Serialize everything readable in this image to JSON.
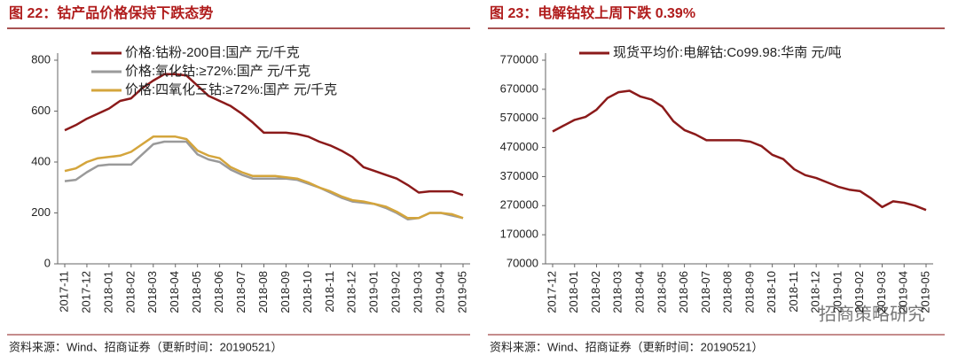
{
  "chart_data": [
    {
      "type": "line",
      "title": "图 22：钴产品价格保持下跌态势",
      "source": "资料来源：Wind、招商证券（更新时间：20190521）",
      "categories": [
        "2017-11",
        null,
        "2017-12",
        null,
        "2018-01",
        null,
        "2018-02",
        null,
        "2018-03",
        null,
        "2018-04",
        null,
        "2018-05",
        null,
        "2018-06",
        null,
        "2018-07",
        null,
        "2018-08",
        null,
        "2018-09",
        null,
        "2018-10",
        null,
        "2018-11",
        null,
        "2018-12",
        null,
        "2019-01",
        null,
        "2019-02",
        null,
        "2019-03",
        null,
        "2019-04",
        null,
        "2019-05"
      ],
      "series": [
        {
          "name": "价格:钴粉-200目:国产 元/千克",
          "color": "#8b1a1a",
          "values": [
            525,
            545,
            570,
            590,
            610,
            640,
            650,
            690,
            720,
            745,
            745,
            740,
            700,
            660,
            640,
            620,
            590,
            555,
            515,
            515,
            515,
            510,
            500,
            480,
            465,
            445,
            420,
            380,
            365,
            350,
            335,
            310,
            280,
            285,
            285,
            285,
            270
          ]
        },
        {
          "name": "价格:氧化钴:≥72%:国产 元/千克",
          "color": "#9a9a9a",
          "values": [
            325,
            330,
            360,
            385,
            390,
            390,
            390,
            430,
            470,
            480,
            480,
            480,
            430,
            410,
            400,
            370,
            350,
            335,
            335,
            335,
            335,
            330,
            315,
            300,
            280,
            260,
            245,
            240,
            235,
            220,
            200,
            175,
            180,
            200,
            200,
            190,
            180
          ]
        },
        {
          "name": "价格:四氧化三钴:≥72%:国产 元/千克",
          "color": "#d4a53c",
          "values": [
            365,
            375,
            400,
            415,
            420,
            425,
            440,
            470,
            500,
            500,
            500,
            490,
            445,
            425,
            415,
            380,
            360,
            345,
            345,
            345,
            340,
            335,
            320,
            300,
            285,
            265,
            250,
            245,
            235,
            225,
            205,
            180,
            180,
            200,
            200,
            195,
            180
          ]
        }
      ],
      "ylim": [
        0,
        800
      ],
      "yticks": [
        0,
        200,
        400,
        600,
        800
      ],
      "grid": false,
      "legend": "top-left"
    },
    {
      "type": "line",
      "title": "图 23：电解钴较上周下跌 0.39%",
      "source": "资料来源：Wind、招商证券（更新时间：20190521）",
      "categories": [
        "2017-12",
        null,
        "2018-01",
        null,
        "2018-02",
        null,
        "2018-03",
        null,
        "2018-04",
        null,
        "2018-05",
        null,
        "2018-06",
        null,
        "2018-07",
        null,
        "2018-08",
        null,
        "2018-09",
        null,
        "2018-10",
        null,
        "2018-11",
        null,
        "2018-12",
        null,
        "2019-01",
        null,
        "2019-02",
        null,
        "2019-03",
        null,
        "2019-04",
        null,
        "2019-05"
      ],
      "series": [
        {
          "name": "现货平均价:电解钴:Co99.98:华南 元/吨",
          "color": "#8b1a1a",
          "values": [
            525000,
            545000,
            565000,
            575000,
            600000,
            640000,
            660000,
            665000,
            645000,
            635000,
            610000,
            560000,
            530000,
            515000,
            495000,
            495000,
            495000,
            495000,
            490000,
            475000,
            445000,
            430000,
            395000,
            375000,
            365000,
            350000,
            335000,
            325000,
            320000,
            295000,
            265000,
            285000,
            280000,
            270000,
            255000
          ]
        }
      ],
      "ylim": [
        70000,
        770000
      ],
      "yticks": [
        70000,
        170000,
        270000,
        370000,
        470000,
        570000,
        670000,
        770000
      ],
      "grid": false,
      "legend": "top-left"
    }
  ],
  "watermark": "招商策略研究"
}
